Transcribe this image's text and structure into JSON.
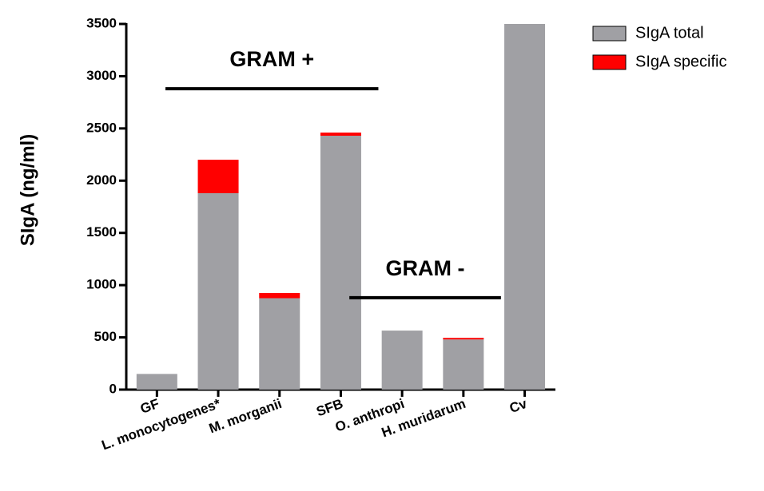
{
  "chart_data": {
    "type": "bar",
    "stacked": true,
    "categories": [
      "GF",
      "L. monocytogenes*",
      "M. morganii",
      "SFB",
      "O. anthropi",
      "H. muridarum",
      "Cv"
    ],
    "series": [
      {
        "name": "SIgA total",
        "color": "#a0a0a4",
        "values": [
          150,
          1880,
          875,
          2430,
          565,
          480,
          3500
        ]
      },
      {
        "name": "SIgA specific",
        "color": "#ff0000",
        "values": [
          0,
          320,
          50,
          30,
          0,
          15,
          0
        ]
      }
    ],
    "ylabel": "SIgA  (ng/ml)",
    "xlabel": "",
    "ylim": [
      0,
      3500
    ],
    "yticks": [
      0,
      500,
      1000,
      1500,
      2000,
      2500,
      3000,
      3500
    ],
    "grid": false,
    "legend_position": "top-right",
    "annotations": [
      {
        "text": "GRAM +",
        "from": "L. monocytogenes*",
        "to": "SFB",
        "y": 2880
      },
      {
        "text": "GRAM -",
        "from": "O. anthropi",
        "to": "H. muridarum",
        "y": 880
      }
    ]
  }
}
